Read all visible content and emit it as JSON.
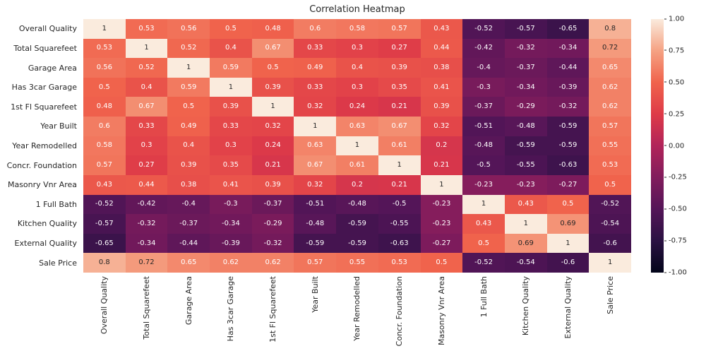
{
  "chart_data": {
    "type": "heatmap",
    "title": "Correlation Heatmap",
    "labels": [
      "Overall Quality",
      "Total Squarefeet",
      "Garage Area",
      "Has 3car Garage",
      "1st Fl Squarefeet",
      "Year Built",
      "Year Remodelled",
      "Concr. Foundation",
      "Masonry Vnr Area",
      "1 Full Bath",
      "Kitchen Quality",
      "External Quality",
      "Sale Price"
    ],
    "matrix": [
      [
        1,
        0.53,
        0.56,
        0.5,
        0.48,
        0.6,
        0.58,
        0.57,
        0.43,
        -0.52,
        -0.57,
        -0.65,
        0.8
      ],
      [
        0.53,
        1,
        0.52,
        0.4,
        0.67,
        0.33,
        0.3,
        0.27,
        0.44,
        -0.42,
        -0.32,
        -0.34,
        0.72
      ],
      [
        0.56,
        0.52,
        1,
        0.59,
        0.5,
        0.49,
        0.4,
        0.39,
        0.38,
        -0.4,
        -0.37,
        -0.44,
        0.65
      ],
      [
        0.5,
        0.4,
        0.59,
        1,
        0.39,
        0.33,
        0.3,
        0.35,
        0.41,
        -0.3,
        -0.34,
        -0.39,
        0.62
      ],
      [
        0.48,
        0.67,
        0.5,
        0.39,
        1,
        0.32,
        0.24,
        0.21,
        0.39,
        -0.37,
        -0.29,
        -0.32,
        0.62
      ],
      [
        0.6,
        0.33,
        0.49,
        0.33,
        0.32,
        1,
        0.63,
        0.67,
        0.32,
        -0.51,
        -0.48,
        -0.59,
        0.57
      ],
      [
        0.58,
        0.3,
        0.4,
        0.3,
        0.24,
        0.63,
        1,
        0.61,
        0.2,
        -0.48,
        -0.59,
        -0.59,
        0.55
      ],
      [
        0.57,
        0.27,
        0.39,
        0.35,
        0.21,
        0.67,
        0.61,
        1,
        0.21,
        -0.5,
        -0.55,
        -0.63,
        0.53
      ],
      [
        0.43,
        0.44,
        0.38,
        0.41,
        0.39,
        0.32,
        0.2,
        0.21,
        1,
        -0.23,
        -0.23,
        -0.27,
        0.5
      ],
      [
        -0.52,
        -0.42,
        -0.4,
        -0.3,
        -0.37,
        -0.51,
        -0.48,
        -0.5,
        -0.23,
        1,
        0.43,
        0.5,
        -0.52
      ],
      [
        -0.57,
        -0.32,
        -0.37,
        -0.34,
        -0.29,
        -0.48,
        -0.59,
        -0.55,
        -0.23,
        0.43,
        1,
        0.69,
        -0.54
      ],
      [
        -0.65,
        -0.34,
        -0.44,
        -0.39,
        -0.32,
        -0.59,
        -0.59,
        -0.63,
        -0.27,
        0.5,
        0.69,
        1,
        -0.6
      ],
      [
        0.8,
        0.72,
        0.65,
        0.62,
        0.62,
        0.57,
        0.55,
        0.53,
        0.5,
        -0.52,
        -0.54,
        -0.6,
        1
      ]
    ],
    "vmin": -1,
    "vmax": 1,
    "colorbar_ticks": [
      "1.00",
      "0.75",
      "0.50",
      "0.25",
      "0.00",
      "-0.25",
      "-0.50",
      "-0.75",
      "-1.00"
    ],
    "colormap": {
      "name": "rocket",
      "stops": [
        "#03051A",
        "#2A1142",
        "#541558",
        "#811C5C",
        "#B1245A",
        "#DE3A48",
        "#F0634C",
        "#F5A283",
        "#FAEBDD"
      ]
    },
    "annotation_dark_color": "#262626",
    "annotation_light_color": "#FFFFFF",
    "background_color": "#FFFFFF",
    "legend_position": "right-colorbar",
    "grid": false
  }
}
